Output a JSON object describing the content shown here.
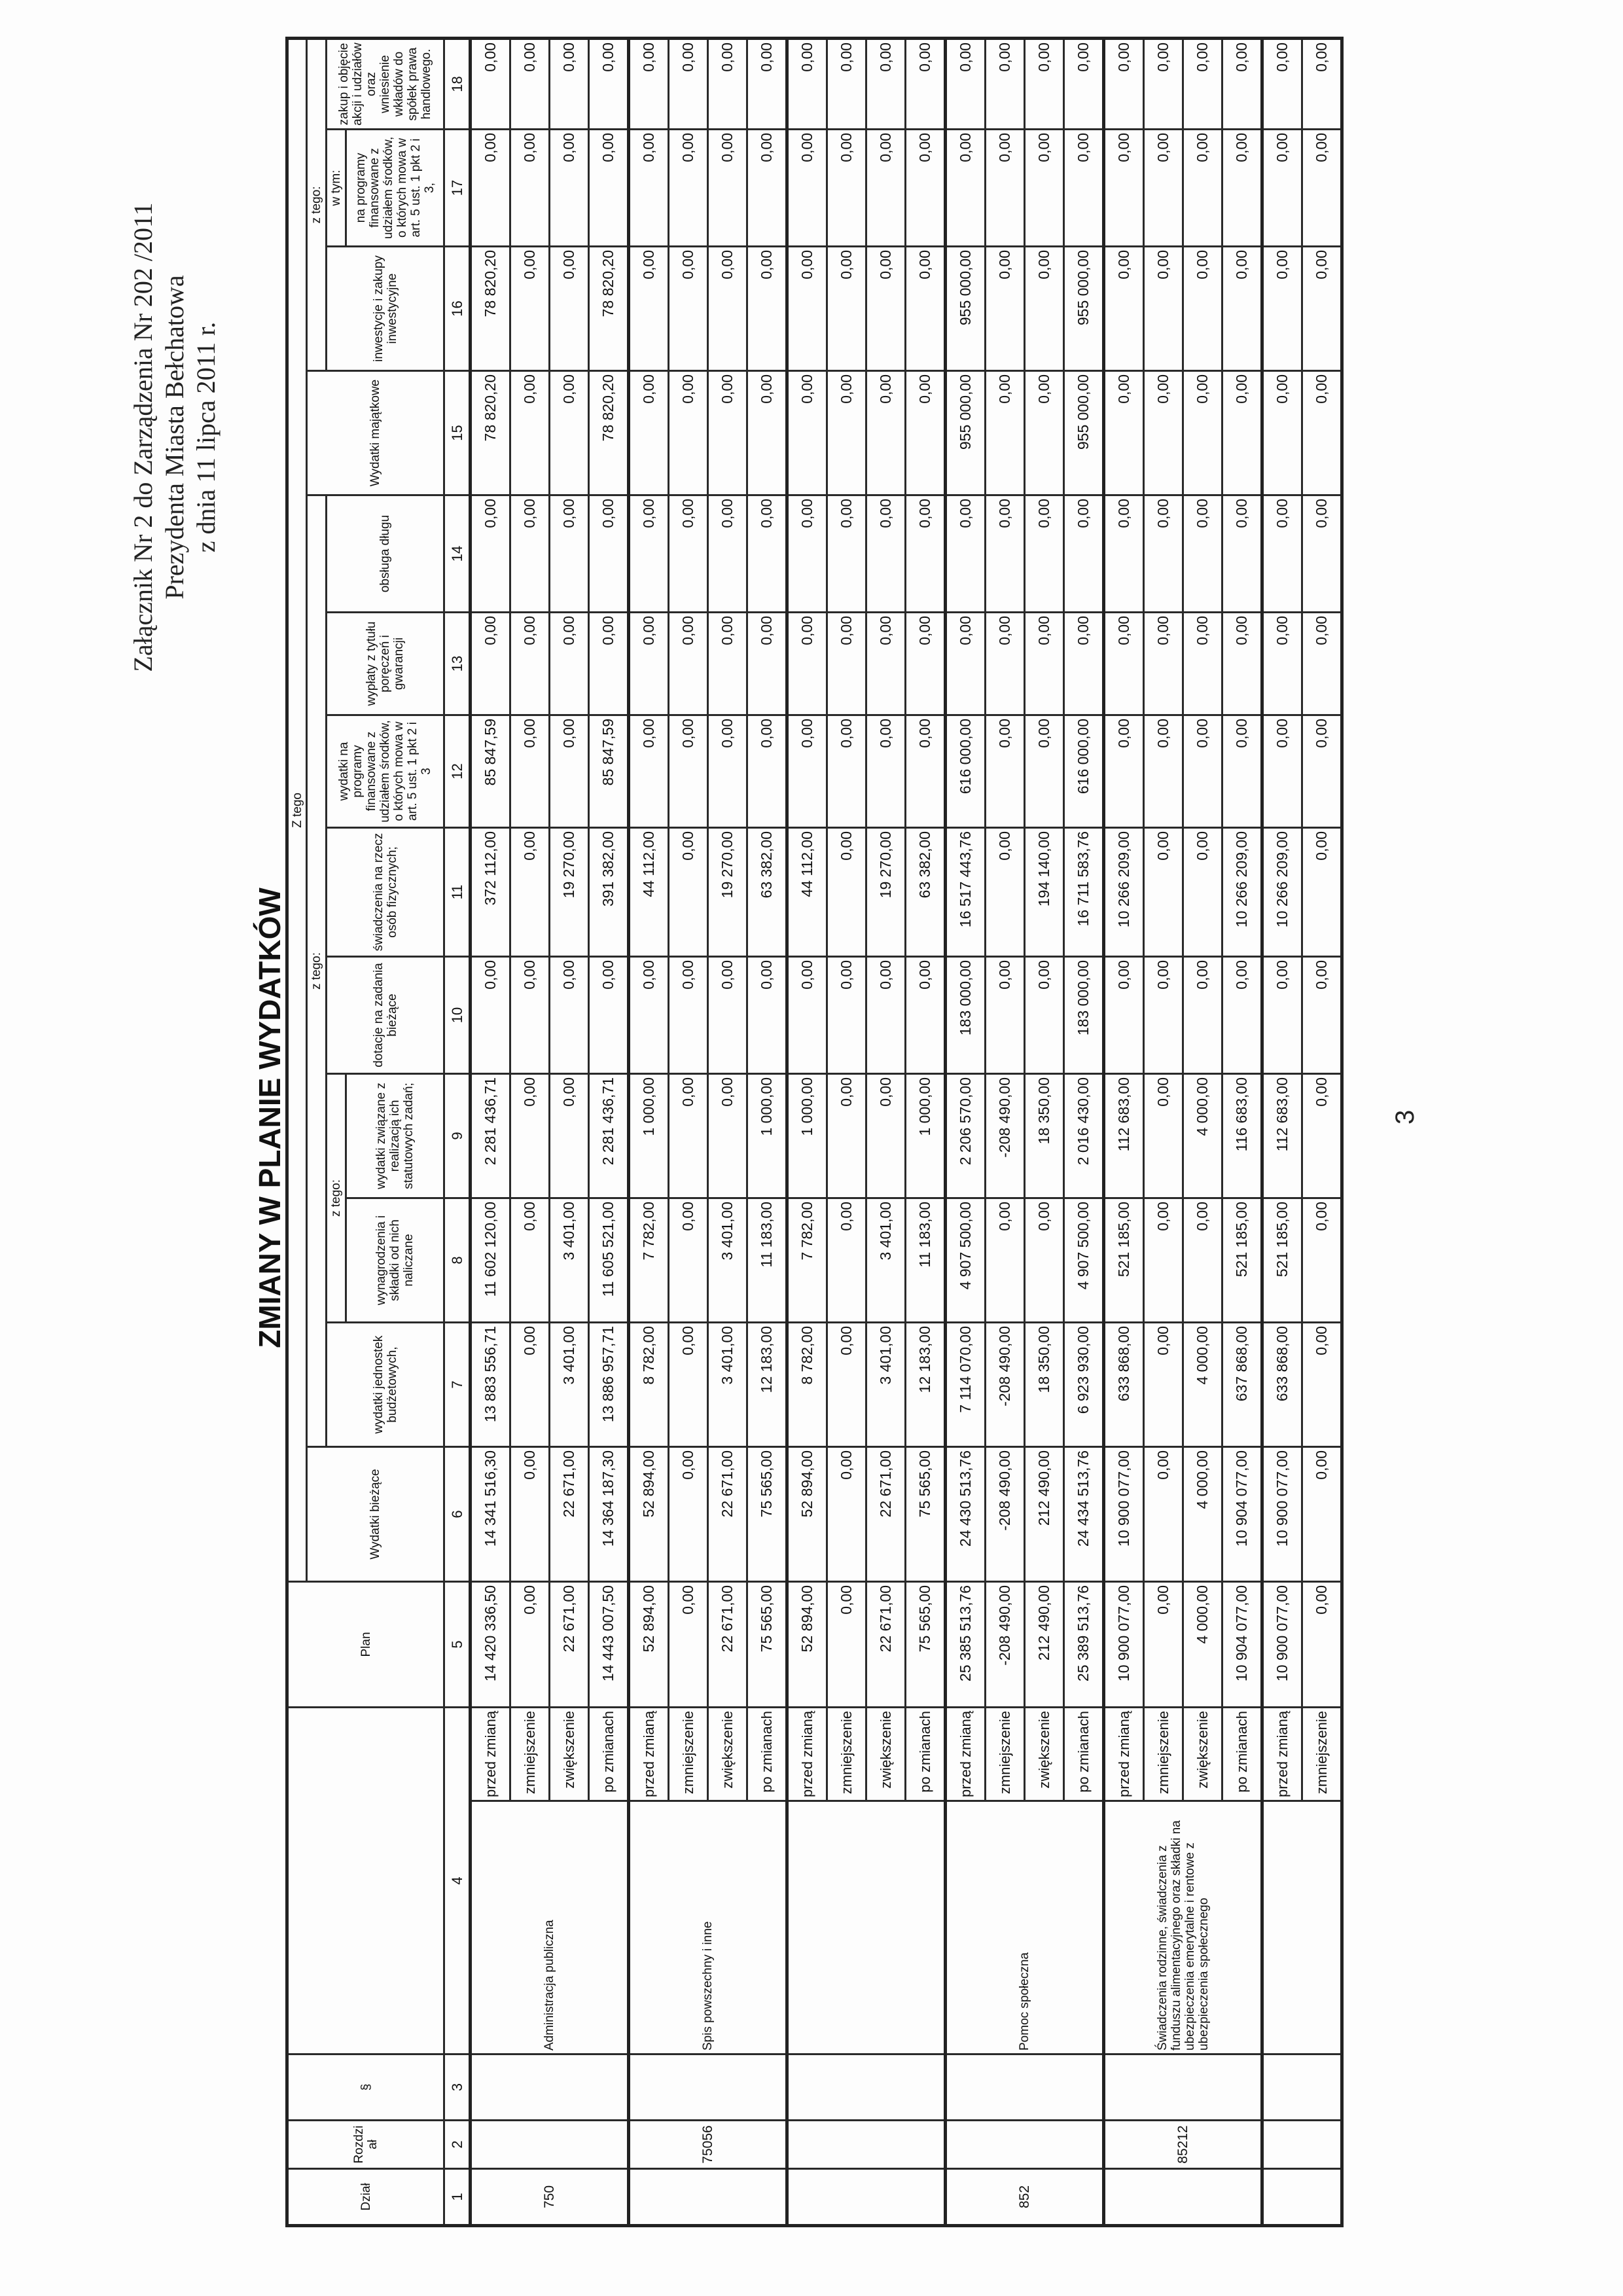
{
  "annex": {
    "line1": "Załącznik Nr 2 do Zarządzenia Nr 202 /2011",
    "line2": "Prezydenta Miasta Bełchatowa",
    "line3": "z dnia 11 lipca 2011 r."
  },
  "title": "ZMIANY W PLANIE WYDATKÓW",
  "page_number": "3",
  "header": {
    "dzial": "Dział",
    "rozdzial": "Rozdzi ał",
    "paragraf": "§",
    "plan": "Plan",
    "z_tego_top": "Z tego",
    "wydatki_biezace": "Wydatki bieżące",
    "z_tego_1": "z tego:",
    "wydatki_jednostek": "wydatki jednostek budżetowych,",
    "z_tego_2": "z tego:",
    "wynagrodzenia": "wynagrodzenia i składki od nich naliczane",
    "wydatki_statutowe": "wydatki związane z realizacją ich statutowych zadań;",
    "dotacje": "dotacje na zadania bieżące",
    "swiadczenia": "świadczenia na rzecz osób fizycznych;",
    "programy": "wydatki na programy finansowane z udziałem środków, o których mowa w art. 5 ust. 1 pkt 2 i 3",
    "poreczenia": "wypłaty z tytułu poręczeń i gwarancji",
    "obsluga_dlugu": "obsługa długu",
    "wydatki_majatkowe": "Wydatki majątkowe",
    "z_tego_3": "z tego:",
    "inwestycje": "inwestycje i zakupy inwestycyjne",
    "w_tym": "w tym:",
    "programy_inw": "na programy finansowane z udziałem środków, o których mowa w art. 5 ust. 1 pkt 2 i 3,",
    "akcje": "zakup i objęcie akcji i udziałów oraz wniesienie wkładów do spółek prawa handlowego.",
    "numbers": [
      "1",
      "2",
      "3",
      "4",
      "5",
      "6",
      "7",
      "8",
      "9",
      "10",
      "11",
      "12",
      "13",
      "14",
      "15",
      "16",
      "17",
      "18"
    ]
  },
  "row_labels": [
    "przed zmianą",
    "zmniejszenie",
    "zwiększenie",
    "po zmianach"
  ],
  "blocks": [
    {
      "dzial": "750",
      "rozdzial": "",
      "paragraf": "",
      "name": "Administracja publiczna",
      "rows": [
        [
          "14 420 336,50",
          "14 341 516,30",
          "13 883 556,71",
          "11 602 120,00",
          "2 281 436,71",
          "0,00",
          "372 112,00",
          "85 847,59",
          "0,00",
          "0,00",
          "78 820,20",
          "78 820,20",
          "0,00",
          "0,00"
        ],
        [
          "0,00",
          "0,00",
          "0,00",
          "0,00",
          "0,00",
          "0,00",
          "0,00",
          "0,00",
          "0,00",
          "0,00",
          "0,00",
          "0,00",
          "0,00",
          "0,00"
        ],
        [
          "22 671,00",
          "22 671,00",
          "3 401,00",
          "3 401,00",
          "0,00",
          "0,00",
          "19 270,00",
          "0,00",
          "0,00",
          "0,00",
          "0,00",
          "0,00",
          "0,00",
          "0,00"
        ],
        [
          "14 443 007,50",
          "14 364 187,30",
          "13 886 957,71",
          "11 605 521,00",
          "2 281 436,71",
          "0,00",
          "391 382,00",
          "85 847,59",
          "0,00",
          "0,00",
          "78 820,20",
          "78 820,20",
          "0,00",
          "0,00"
        ]
      ]
    },
    {
      "dzial": "",
      "rozdzial": "75056",
      "paragraf": "",
      "name": "Spis powszechny i inne",
      "rows": [
        [
          "52 894,00",
          "52 894,00",
          "8 782,00",
          "7 782,00",
          "1 000,00",
          "0,00",
          "44 112,00",
          "0,00",
          "0,00",
          "0,00",
          "0,00",
          "0,00",
          "0,00",
          "0,00"
        ],
        [
          "0,00",
          "0,00",
          "0,00",
          "0,00",
          "0,00",
          "0,00",
          "0,00",
          "0,00",
          "0,00",
          "0,00",
          "0,00",
          "0,00",
          "0,00",
          "0,00"
        ],
        [
          "22 671,00",
          "22 671,00",
          "3 401,00",
          "3 401,00",
          "0,00",
          "0,00",
          "19 270,00",
          "0,00",
          "0,00",
          "0,00",
          "0,00",
          "0,00",
          "0,00",
          "0,00"
        ],
        [
          "75 565,00",
          "75 565,00",
          "12 183,00",
          "11 183,00",
          "1 000,00",
          "0,00",
          "63 382,00",
          "0,00",
          "0,00",
          "0,00",
          "0,00",
          "0,00",
          "0,00",
          "0,00"
        ]
      ]
    },
    {
      "dzial": "",
      "rozdzial": "",
      "paragraf": "",
      "name": "",
      "rows": [
        [
          "52 894,00",
          "52 894,00",
          "8 782,00",
          "7 782,00",
          "1 000,00",
          "0,00",
          "44 112,00",
          "0,00",
          "0,00",
          "0,00",
          "0,00",
          "0,00",
          "0,00",
          "0,00"
        ],
        [
          "0,00",
          "0,00",
          "0,00",
          "0,00",
          "0,00",
          "0,00",
          "0,00",
          "0,00",
          "0,00",
          "0,00",
          "0,00",
          "0,00",
          "0,00",
          "0,00"
        ],
        [
          "22 671,00",
          "22 671,00",
          "3 401,00",
          "3 401,00",
          "0,00",
          "0,00",
          "19 270,00",
          "0,00",
          "0,00",
          "0,00",
          "0,00",
          "0,00",
          "0,00",
          "0,00"
        ],
        [
          "75 565,00",
          "75 565,00",
          "12 183,00",
          "11 183,00",
          "1 000,00",
          "0,00",
          "63 382,00",
          "0,00",
          "0,00",
          "0,00",
          "0,00",
          "0,00",
          "0,00",
          "0,00"
        ]
      ]
    },
    {
      "dzial": "852",
      "rozdzial": "",
      "paragraf": "",
      "name": "Pomoc społeczna",
      "rows": [
        [
          "25 385 513,76",
          "24 430 513,76",
          "7 114 070,00",
          "4 907 500,00",
          "2 206 570,00",
          "183 000,00",
          "16 517 443,76",
          "616 000,00",
          "0,00",
          "0,00",
          "955 000,00",
          "955 000,00",
          "0,00",
          "0,00"
        ],
        [
          "-208 490,00",
          "-208 490,00",
          "-208 490,00",
          "0,00",
          "-208 490,00",
          "0,00",
          "0,00",
          "0,00",
          "0,00",
          "0,00",
          "0,00",
          "0,00",
          "0,00",
          "0,00"
        ],
        [
          "212 490,00",
          "212 490,00",
          "18 350,00",
          "0,00",
          "18 350,00",
          "0,00",
          "194 140,00",
          "0,00",
          "0,00",
          "0,00",
          "0,00",
          "0,00",
          "0,00",
          "0,00"
        ],
        [
          "25 389 513,76",
          "24 434 513,76",
          "6 923 930,00",
          "4 907 500,00",
          "2 016 430,00",
          "183 000,00",
          "16 711 583,76",
          "616 000,00",
          "0,00",
          "0,00",
          "955 000,00",
          "955 000,00",
          "0,00",
          "0,00"
        ]
      ]
    },
    {
      "dzial": "",
      "rozdzial": "85212",
      "paragraf": "",
      "name": "Świadczenia rodzinne, świadczenia z funduszu alimentacyjnego oraz składki na ubezpieczenia emerytalne i rentowe z ubezpieczenia społecznego",
      "rows": [
        [
          "10 900 077,00",
          "10 900 077,00",
          "633 868,00",
          "521 185,00",
          "112 683,00",
          "0,00",
          "10 266 209,00",
          "0,00",
          "0,00",
          "0,00",
          "0,00",
          "0,00",
          "0,00",
          "0,00"
        ],
        [
          "0,00",
          "0,00",
          "0,00",
          "0,00",
          "0,00",
          "0,00",
          "0,00",
          "0,00",
          "0,00",
          "0,00",
          "0,00",
          "0,00",
          "0,00",
          "0,00"
        ],
        [
          "4 000,00",
          "4 000,00",
          "4 000,00",
          "0,00",
          "4 000,00",
          "0,00",
          "0,00",
          "0,00",
          "0,00",
          "0,00",
          "0,00",
          "0,00",
          "0,00",
          "0,00"
        ],
        [
          "10 904 077,00",
          "10 904 077,00",
          "637 868,00",
          "521 185,00",
          "116 683,00",
          "0,00",
          "10 266 209,00",
          "0,00",
          "0,00",
          "0,00",
          "0,00",
          "0,00",
          "0,00",
          "0,00"
        ]
      ]
    },
    {
      "dzial": "",
      "rozdzial": "",
      "paragraf": "",
      "name": "",
      "rows": [
        [
          "10 900 077,00",
          "10 900 077,00",
          "633 868,00",
          "521 185,00",
          "112 683,00",
          "0,00",
          "10 266 209,00",
          "0,00",
          "0,00",
          "0,00",
          "0,00",
          "0,00",
          "0,00",
          "0,00"
        ],
        [
          "0,00",
          "0,00",
          "0,00",
          "0,00",
          "0,00",
          "0,00",
          "0,00",
          "0,00",
          "0,00",
          "0,00",
          "0,00",
          "0,00",
          "0,00",
          "0,00"
        ]
      ]
    }
  ]
}
